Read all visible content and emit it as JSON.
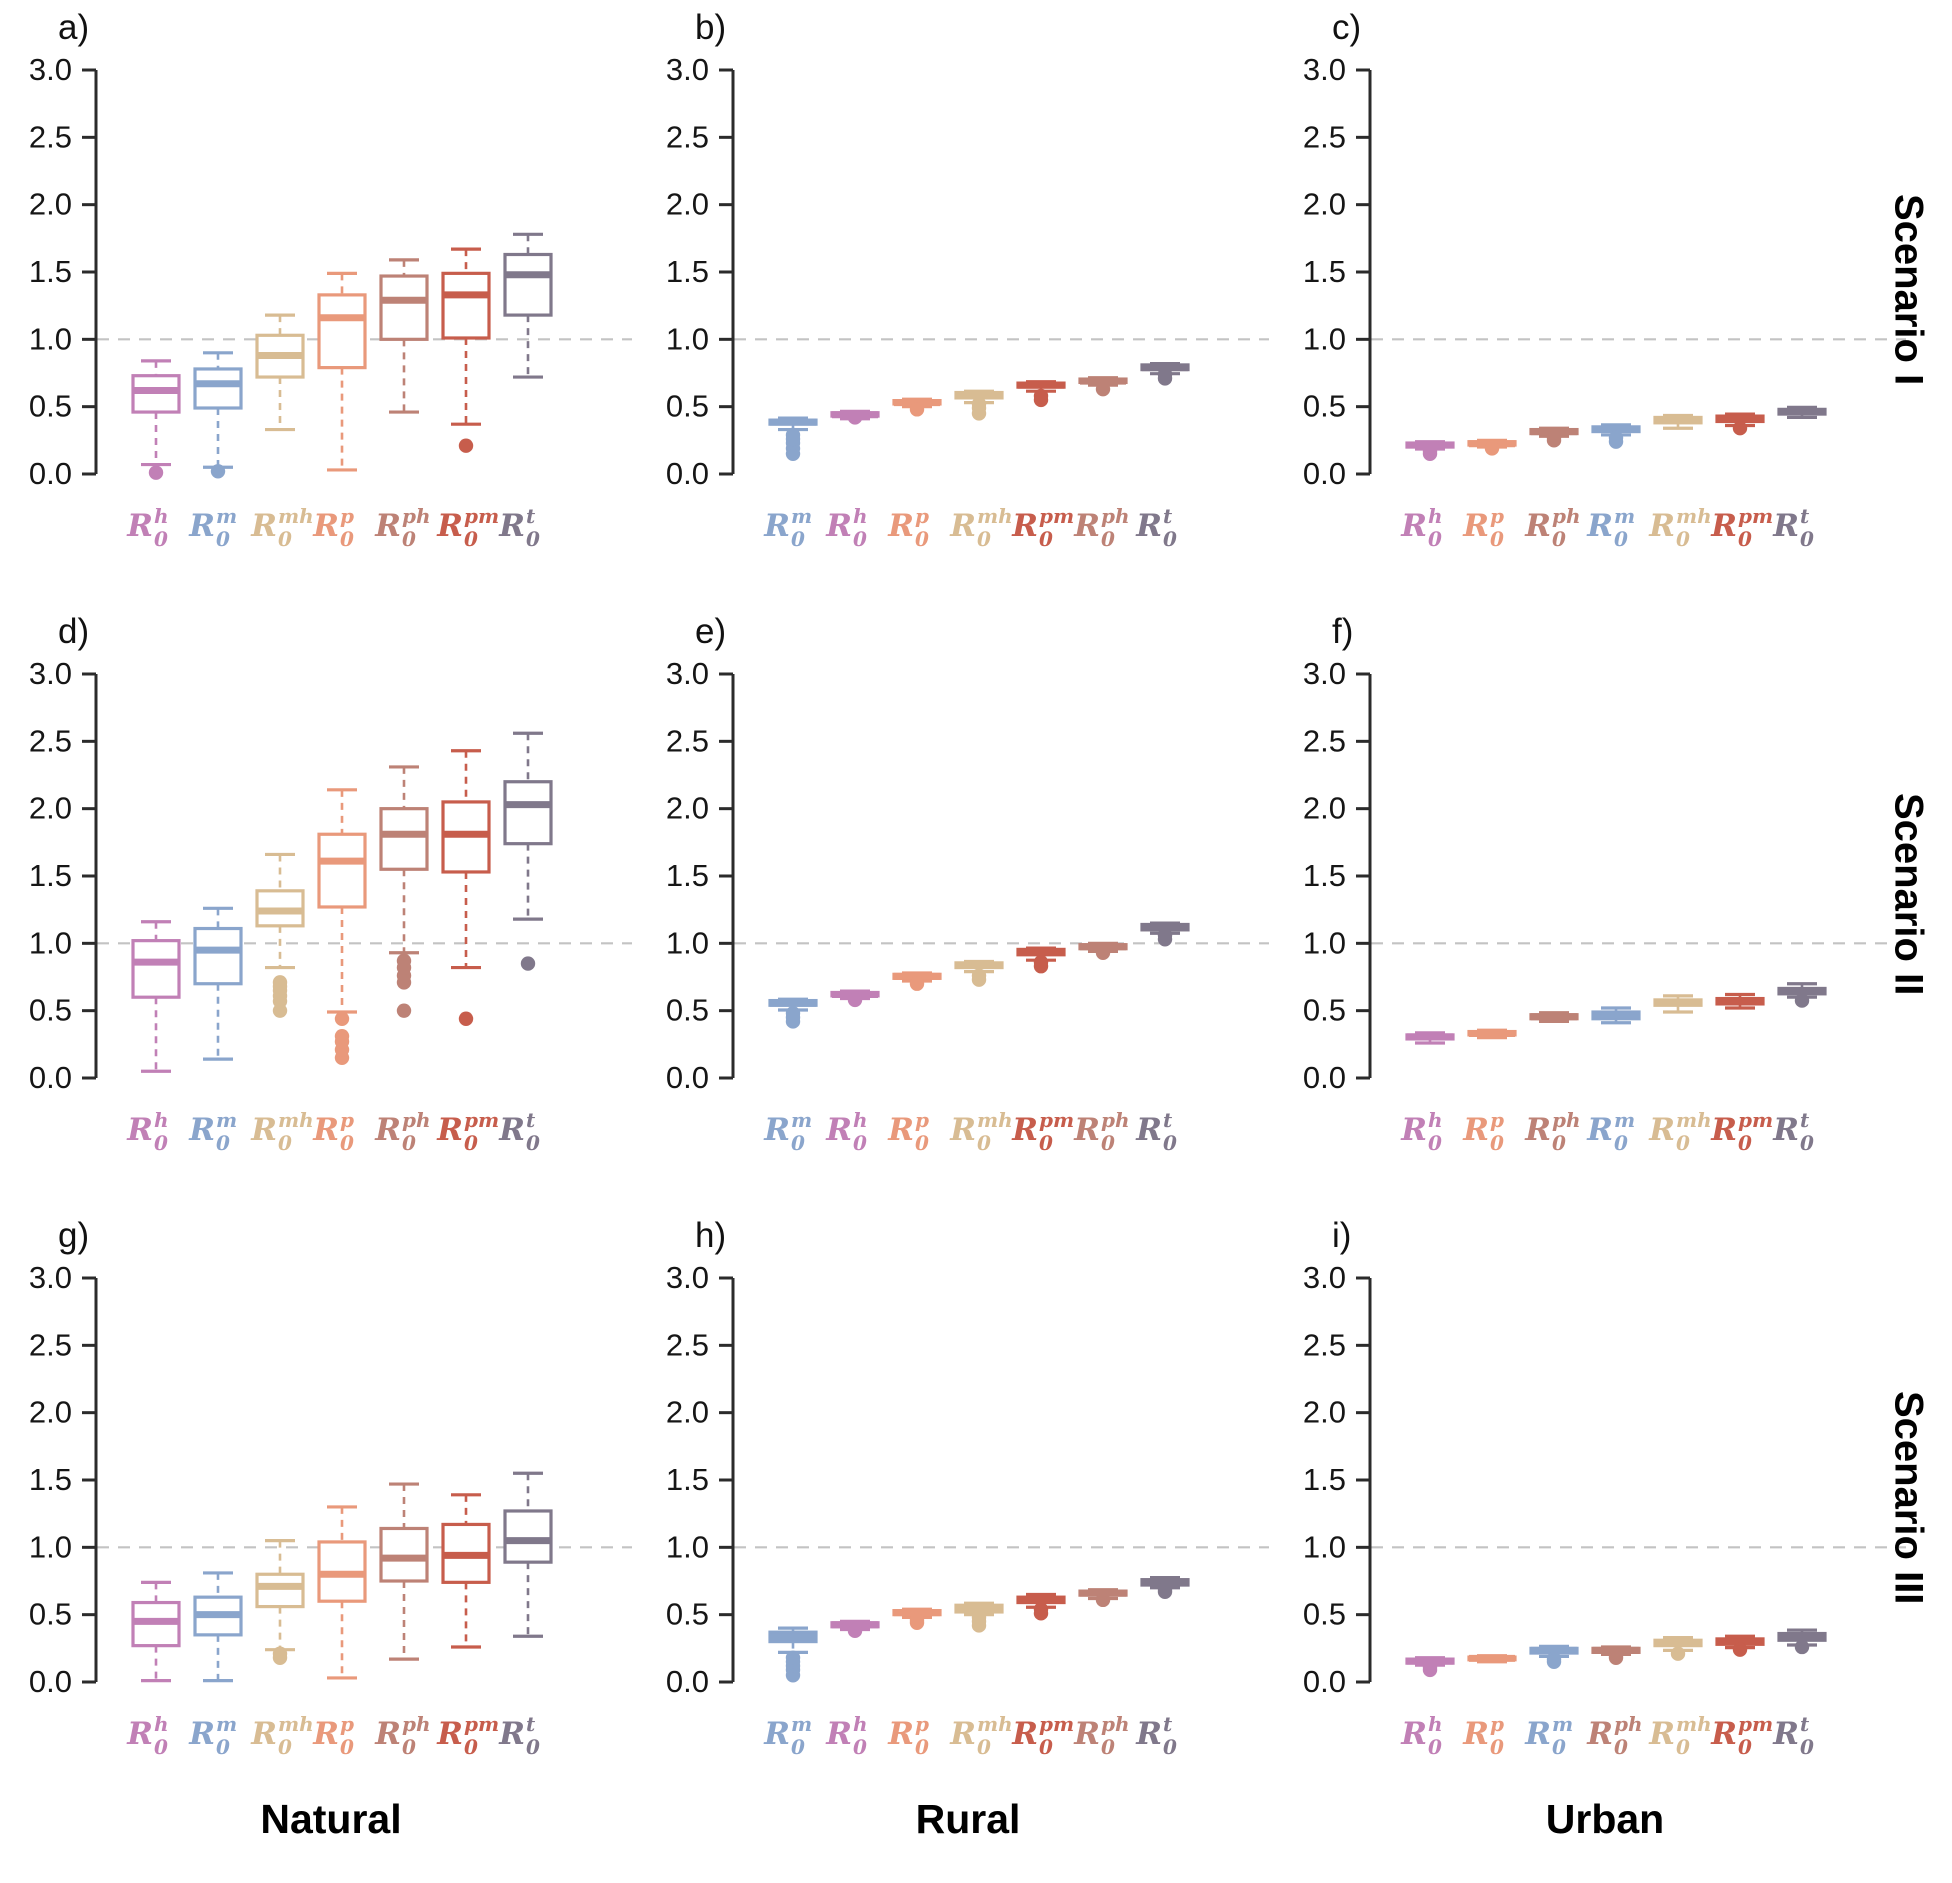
{
  "figure": {
    "columns": [
      "Natural",
      "Rural",
      "Urban"
    ],
    "rows": [
      "Scenario I",
      "Scenario II",
      "Scenario III"
    ],
    "ref_color": "#c3c3c3",
    "axis_color": "#2b2b2b",
    "series_colors": {
      "h": "#c180b6",
      "m": "#8aa5cc",
      "mh": "#d8bc93",
      "p": "#e9997b",
      "ph": "#bd8276",
      "pm": "#c75d4c",
      "t": "#80788b"
    },
    "series_labels": {
      "h": {
        "base": "R",
        "sup": "h",
        "sub": "0"
      },
      "m": {
        "base": "R",
        "sup": "m",
        "sub": "0"
      },
      "mh": {
        "base": "R",
        "sup": "mh",
        "sub": "0"
      },
      "p": {
        "base": "R",
        "sup": "p",
        "sub": "0"
      },
      "ph": {
        "base": "R",
        "sup": "ph",
        "sub": "0"
      },
      "pm": {
        "base": "R",
        "sup": "pm",
        "sub": "0"
      },
      "t": {
        "base": "R",
        "sup": "t",
        "sub": "0"
      }
    }
  },
  "chart_data": {
    "type": "boxplot",
    "ylim": [
      0.0,
      3.0
    ],
    "yticks": [
      "0.0",
      "0.5",
      "1.0",
      "1.5",
      "2.0",
      "2.5",
      "3.0"
    ],
    "ref_line": 1.0,
    "grid": "off",
    "panels": [
      {
        "id": "a",
        "letter": "a)",
        "region": "Natural",
        "scenario": "Scenario I",
        "series": [
          {
            "key": "h",
            "lo": 0.07,
            "q1": 0.46,
            "med": 0.62,
            "q3": 0.73,
            "hi": 0.84,
            "out": [
              0.01
            ]
          },
          {
            "key": "m",
            "lo": 0.05,
            "q1": 0.49,
            "med": 0.67,
            "q3": 0.78,
            "hi": 0.9,
            "out": [
              0.02
            ]
          },
          {
            "key": "mh",
            "lo": 0.33,
            "q1": 0.72,
            "med": 0.88,
            "q3": 1.03,
            "hi": 1.18,
            "out": []
          },
          {
            "key": "p",
            "lo": 0.03,
            "q1": 0.79,
            "med": 1.16,
            "q3": 1.33,
            "hi": 1.49,
            "out": []
          },
          {
            "key": "ph",
            "lo": 0.46,
            "q1": 1.0,
            "med": 1.29,
            "q3": 1.47,
            "hi": 1.59,
            "out": []
          },
          {
            "key": "pm",
            "lo": 0.37,
            "q1": 1.01,
            "med": 1.33,
            "q3": 1.49,
            "hi": 1.67,
            "out": [
              0.21
            ]
          },
          {
            "key": "t",
            "lo": 0.72,
            "q1": 1.18,
            "med": 1.48,
            "q3": 1.63,
            "hi": 1.78,
            "out": []
          }
        ]
      },
      {
        "id": "b",
        "letter": "b)",
        "region": "Rural",
        "scenario": "Scenario I",
        "series": [
          {
            "key": "m",
            "lo": 0.33,
            "q1": 0.37,
            "med": 0.385,
            "q3": 0.4,
            "hi": 0.415,
            "out": [
              0.15,
              0.19,
              0.23,
              0.26,
              0.29
            ]
          },
          {
            "key": "h",
            "lo": 0.41,
            "q1": 0.43,
            "med": 0.44,
            "q3": 0.455,
            "hi": 0.465,
            "out": [
              0.42
            ]
          },
          {
            "key": "p",
            "lo": 0.5,
            "q1": 0.52,
            "med": 0.53,
            "q3": 0.545,
            "hi": 0.555,
            "out": [
              0.48
            ]
          },
          {
            "key": "mh",
            "lo": 0.53,
            "q1": 0.565,
            "med": 0.585,
            "q3": 0.605,
            "hi": 0.615,
            "out": [
              0.45,
              0.49,
              0.52
            ]
          },
          {
            "key": "pm",
            "lo": 0.615,
            "q1": 0.645,
            "med": 0.66,
            "q3": 0.675,
            "hi": 0.685,
            "out": [
              0.55,
              0.58
            ]
          },
          {
            "key": "ph",
            "lo": 0.66,
            "q1": 0.68,
            "med": 0.69,
            "q3": 0.705,
            "hi": 0.715,
            "out": [
              0.63
            ]
          },
          {
            "key": "t",
            "lo": 0.745,
            "q1": 0.775,
            "med": 0.79,
            "q3": 0.81,
            "hi": 0.82,
            "out": [
              0.71,
              0.74
            ]
          }
        ]
      },
      {
        "id": "c",
        "letter": "c)",
        "region": "Urban",
        "scenario": "Scenario I",
        "series": [
          {
            "key": "h",
            "lo": 0.185,
            "q1": 0.2,
            "med": 0.215,
            "q3": 0.23,
            "hi": 0.24,
            "out": [
              0.15,
              0.17
            ]
          },
          {
            "key": "p",
            "lo": 0.2,
            "q1": 0.215,
            "med": 0.225,
            "q3": 0.24,
            "hi": 0.25,
            "out": [
              0.19
            ]
          },
          {
            "key": "ph",
            "lo": 0.28,
            "q1": 0.3,
            "med": 0.315,
            "q3": 0.33,
            "hi": 0.34,
            "out": [
              0.25,
              0.27
            ]
          },
          {
            "key": "m",
            "lo": 0.29,
            "q1": 0.315,
            "med": 0.33,
            "q3": 0.35,
            "hi": 0.365,
            "out": [
              0.24,
              0.27
            ]
          },
          {
            "key": "mh",
            "lo": 0.34,
            "q1": 0.38,
            "med": 0.4,
            "q3": 0.42,
            "hi": 0.435,
            "out": []
          },
          {
            "key": "pm",
            "lo": 0.36,
            "q1": 0.39,
            "med": 0.41,
            "q3": 0.43,
            "hi": 0.445,
            "out": [
              0.34
            ]
          },
          {
            "key": "t",
            "lo": 0.42,
            "q1": 0.445,
            "med": 0.46,
            "q3": 0.48,
            "hi": 0.495,
            "out": []
          }
        ]
      },
      {
        "id": "d",
        "letter": "d)",
        "region": "Natural",
        "scenario": "Scenario II",
        "series": [
          {
            "key": "h",
            "lo": 0.05,
            "q1": 0.6,
            "med": 0.86,
            "q3": 1.02,
            "hi": 1.16,
            "out": []
          },
          {
            "key": "m",
            "lo": 0.14,
            "q1": 0.7,
            "med": 0.95,
            "q3": 1.11,
            "hi": 1.26,
            "out": []
          },
          {
            "key": "mh",
            "lo": 0.82,
            "q1": 1.13,
            "med": 1.24,
            "q3": 1.39,
            "hi": 1.66,
            "out": [
              0.5,
              0.57,
              0.61,
              0.65,
              0.68,
              0.71
            ]
          },
          {
            "key": "p",
            "lo": 0.49,
            "q1": 1.27,
            "med": 1.61,
            "q3": 1.81,
            "hi": 2.14,
            "out": [
              0.15,
              0.21,
              0.27,
              0.31,
              0.44
            ]
          },
          {
            "key": "ph",
            "lo": 0.93,
            "q1": 1.55,
            "med": 1.81,
            "q3": 2.0,
            "hi": 2.31,
            "out": [
              0.5,
              0.71,
              0.76,
              0.82,
              0.87
            ]
          },
          {
            "key": "pm",
            "lo": 0.82,
            "q1": 1.53,
            "med": 1.81,
            "q3": 2.05,
            "hi": 2.43,
            "out": [
              0.44
            ]
          },
          {
            "key": "t",
            "lo": 1.18,
            "q1": 1.74,
            "med": 2.03,
            "q3": 2.2,
            "hi": 2.56,
            "out": [
              0.85
            ]
          }
        ]
      },
      {
        "id": "e",
        "letter": "e)",
        "region": "Rural",
        "scenario": "Scenario II",
        "series": [
          {
            "key": "m",
            "lo": 0.505,
            "q1": 0.54,
            "med": 0.555,
            "q3": 0.575,
            "hi": 0.585,
            "out": [
              0.42,
              0.45,
              0.48
            ]
          },
          {
            "key": "h",
            "lo": 0.59,
            "q1": 0.61,
            "med": 0.62,
            "q3": 0.635,
            "hi": 0.645,
            "out": [
              0.58
            ]
          },
          {
            "key": "p",
            "lo": 0.72,
            "q1": 0.74,
            "med": 0.755,
            "q3": 0.77,
            "hi": 0.78,
            "out": [
              0.7
            ]
          },
          {
            "key": "mh",
            "lo": 0.79,
            "q1": 0.82,
            "med": 0.835,
            "q3": 0.855,
            "hi": 0.865,
            "out": [
              0.73,
              0.76
            ]
          },
          {
            "key": "pm",
            "lo": 0.875,
            "q1": 0.915,
            "med": 0.935,
            "q3": 0.955,
            "hi": 0.965,
            "out": [
              0.83,
              0.86
            ]
          },
          {
            "key": "ph",
            "lo": 0.94,
            "q1": 0.96,
            "med": 0.975,
            "q3": 0.99,
            "hi": 1.0,
            "out": [
              0.93
            ]
          },
          {
            "key": "t",
            "lo": 1.075,
            "q1": 1.1,
            "med": 1.12,
            "q3": 1.14,
            "hi": 1.15,
            "out": [
              1.03,
              1.06
            ]
          }
        ]
      },
      {
        "id": "f",
        "letter": "f)",
        "region": "Urban",
        "scenario": "Scenario II",
        "series": [
          {
            "key": "h",
            "lo": 0.26,
            "q1": 0.29,
            "med": 0.305,
            "q3": 0.32,
            "hi": 0.335,
            "out": []
          },
          {
            "key": "p",
            "lo": 0.3,
            "q1": 0.32,
            "med": 0.33,
            "q3": 0.345,
            "hi": 0.355,
            "out": []
          },
          {
            "key": "ph",
            "lo": 0.42,
            "q1": 0.44,
            "med": 0.455,
            "q3": 0.47,
            "hi": 0.485,
            "out": []
          },
          {
            "key": "m",
            "lo": 0.41,
            "q1": 0.44,
            "med": 0.465,
            "q3": 0.49,
            "hi": 0.52,
            "out": []
          },
          {
            "key": "mh",
            "lo": 0.49,
            "q1": 0.54,
            "med": 0.56,
            "q3": 0.58,
            "hi": 0.61,
            "out": []
          },
          {
            "key": "pm",
            "lo": 0.52,
            "q1": 0.55,
            "med": 0.57,
            "q3": 0.59,
            "hi": 0.62,
            "out": []
          },
          {
            "key": "t",
            "lo": 0.6,
            "q1": 0.625,
            "med": 0.645,
            "q3": 0.665,
            "hi": 0.7,
            "out": [
              0.575
            ]
          }
        ]
      },
      {
        "id": "g",
        "letter": "g)",
        "region": "Natural",
        "scenario": "Scenario III",
        "series": [
          {
            "key": "h",
            "lo": 0.01,
            "q1": 0.27,
            "med": 0.45,
            "q3": 0.59,
            "hi": 0.74,
            "out": []
          },
          {
            "key": "m",
            "lo": 0.01,
            "q1": 0.35,
            "med": 0.5,
            "q3": 0.63,
            "hi": 0.81,
            "out": []
          },
          {
            "key": "mh",
            "lo": 0.24,
            "q1": 0.56,
            "med": 0.71,
            "q3": 0.8,
            "hi": 1.05,
            "out": [
              0.18,
              0.21
            ]
          },
          {
            "key": "p",
            "lo": 0.03,
            "q1": 0.6,
            "med": 0.8,
            "q3": 1.04,
            "hi": 1.3,
            "out": []
          },
          {
            "key": "ph",
            "lo": 0.17,
            "q1": 0.75,
            "med": 0.92,
            "q3": 1.14,
            "hi": 1.47,
            "out": []
          },
          {
            "key": "pm",
            "lo": 0.26,
            "q1": 0.74,
            "med": 0.94,
            "q3": 1.17,
            "hi": 1.39,
            "out": []
          },
          {
            "key": "t",
            "lo": 0.34,
            "q1": 0.89,
            "med": 1.05,
            "q3": 1.27,
            "hi": 1.55,
            "out": []
          }
        ]
      },
      {
        "id": "h",
        "letter": "h)",
        "region": "Rural",
        "scenario": "Scenario III",
        "series": [
          {
            "key": "m",
            "lo": 0.22,
            "q1": 0.3,
            "med": 0.335,
            "q3": 0.37,
            "hi": 0.4,
            "out": [
              0.05,
              0.09,
              0.12,
              0.15,
              0.18
            ]
          },
          {
            "key": "h",
            "lo": 0.39,
            "q1": 0.41,
            "med": 0.425,
            "q3": 0.44,
            "hi": 0.45,
            "out": [
              0.38
            ]
          },
          {
            "key": "p",
            "lo": 0.48,
            "q1": 0.5,
            "med": 0.515,
            "q3": 0.53,
            "hi": 0.54,
            "out": [
              0.44,
              0.46
            ]
          },
          {
            "key": "mh",
            "lo": 0.5,
            "q1": 0.52,
            "med": 0.545,
            "q3": 0.57,
            "hi": 0.585,
            "out": [
              0.42,
              0.45,
              0.48
            ]
          },
          {
            "key": "pm",
            "lo": 0.555,
            "q1": 0.59,
            "med": 0.61,
            "q3": 0.63,
            "hi": 0.65,
            "out": [
              0.51,
              0.54
            ]
          },
          {
            "key": "ph",
            "lo": 0.62,
            "q1": 0.645,
            "med": 0.66,
            "q3": 0.675,
            "hi": 0.685,
            "out": [
              0.61
            ]
          },
          {
            "key": "t",
            "lo": 0.7,
            "q1": 0.72,
            "med": 0.74,
            "q3": 0.76,
            "hi": 0.775,
            "out": [
              0.67,
              0.69
            ]
          }
        ]
      },
      {
        "id": "i",
        "letter": "i)",
        "region": "Urban",
        "scenario": "Scenario III",
        "series": [
          {
            "key": "h",
            "lo": 0.125,
            "q1": 0.14,
            "med": 0.155,
            "q3": 0.17,
            "hi": 0.18,
            "out": [
              0.09,
              0.11
            ]
          },
          {
            "key": "p",
            "lo": 0.15,
            "q1": 0.165,
            "med": 0.175,
            "q3": 0.185,
            "hi": 0.195,
            "out": []
          },
          {
            "key": "m",
            "lo": 0.19,
            "q1": 0.215,
            "med": 0.235,
            "q3": 0.25,
            "hi": 0.265,
            "out": [
              0.15,
              0.17
            ]
          },
          {
            "key": "ph",
            "lo": 0.205,
            "q1": 0.22,
            "med": 0.235,
            "q3": 0.25,
            "hi": 0.26,
            "out": [
              0.18,
              0.2
            ]
          },
          {
            "key": "mh",
            "lo": 0.235,
            "q1": 0.27,
            "med": 0.29,
            "q3": 0.31,
            "hi": 0.33,
            "out": [
              0.21
            ]
          },
          {
            "key": "pm",
            "lo": 0.255,
            "q1": 0.28,
            "med": 0.3,
            "q3": 0.32,
            "hi": 0.34,
            "out": [
              0.24
            ]
          },
          {
            "key": "t",
            "lo": 0.275,
            "q1": 0.31,
            "med": 0.335,
            "q3": 0.36,
            "hi": 0.385,
            "out": [
              0.26
            ]
          }
        ]
      }
    ]
  }
}
